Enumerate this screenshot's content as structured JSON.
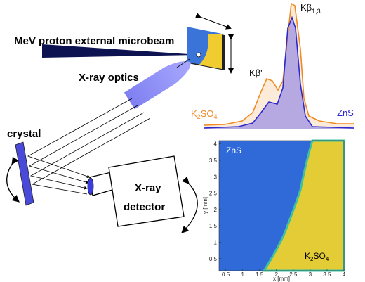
{
  "setup": {
    "beam_label": "MeV proton external microbeam",
    "optics_label": "X-ray optics",
    "crystal_label": "crystal",
    "detector_label": [
      "X-ray",
      "detector"
    ]
  },
  "spectrum": {
    "peak_main": {
      "base": "Kβ",
      "sub": "1,3"
    },
    "peak_side": "Kβ'",
    "series": [
      {
        "name_parts": [
          "K",
          "2",
          "SO",
          "4"
        ],
        "color": "#f08a24"
      },
      {
        "name": "ZnS",
        "color": "#2a2ad0"
      }
    ]
  },
  "map": {
    "label_left": "ZnS",
    "label_right_parts": [
      "K",
      "2",
      "SO",
      "4"
    ],
    "xlabel": "x [mm]",
    "ylabel": "y [mm]",
    "xlim": [
      0.3,
      4.0
    ],
    "ylim": [
      0.13,
      4.1
    ],
    "xticks": [
      0.5,
      1,
      1.5,
      2,
      2.5,
      3,
      3.5,
      4
    ],
    "yticks": [
      0.5,
      1,
      1.5,
      2,
      2.5,
      3,
      3.5,
      4
    ]
  }
}
